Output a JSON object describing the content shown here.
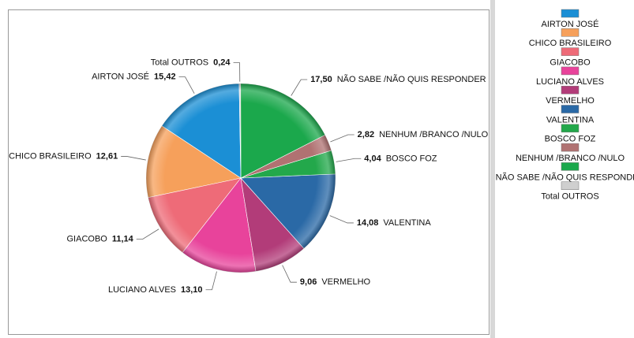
{
  "chart_data": {
    "type": "pie",
    "categories": [
      "AIRTON JOSÉ",
      "CHICO BRASILEIRO",
      "GIACOBO",
      "LUCIANO ALVES",
      "VERMELHO",
      "VALENTINA",
      "BOSCO FOZ",
      "NENHUM /BRANCO /NULO",
      "NÃO SABE /NÃO QUIS RESPONDER",
      "Total OUTROS"
    ],
    "values": [
      15.42,
      12.61,
      11.14,
      13.1,
      9.06,
      14.08,
      4.04,
      2.82,
      17.5,
      0.24
    ],
    "value_labels": [
      "15,42",
      "12,61",
      "11,14",
      "13,10",
      "9,06",
      "14,08",
      "4,04",
      "2,82",
      "17,50",
      "0,24"
    ],
    "colors": [
      "#1b8fd5",
      "#f6a05b",
      "#ee6b78",
      "#e8439b",
      "#b23c79",
      "#2a69a6",
      "#23a84b",
      "#b07272",
      "#1ba84c",
      "#cfcfcf"
    ]
  }
}
